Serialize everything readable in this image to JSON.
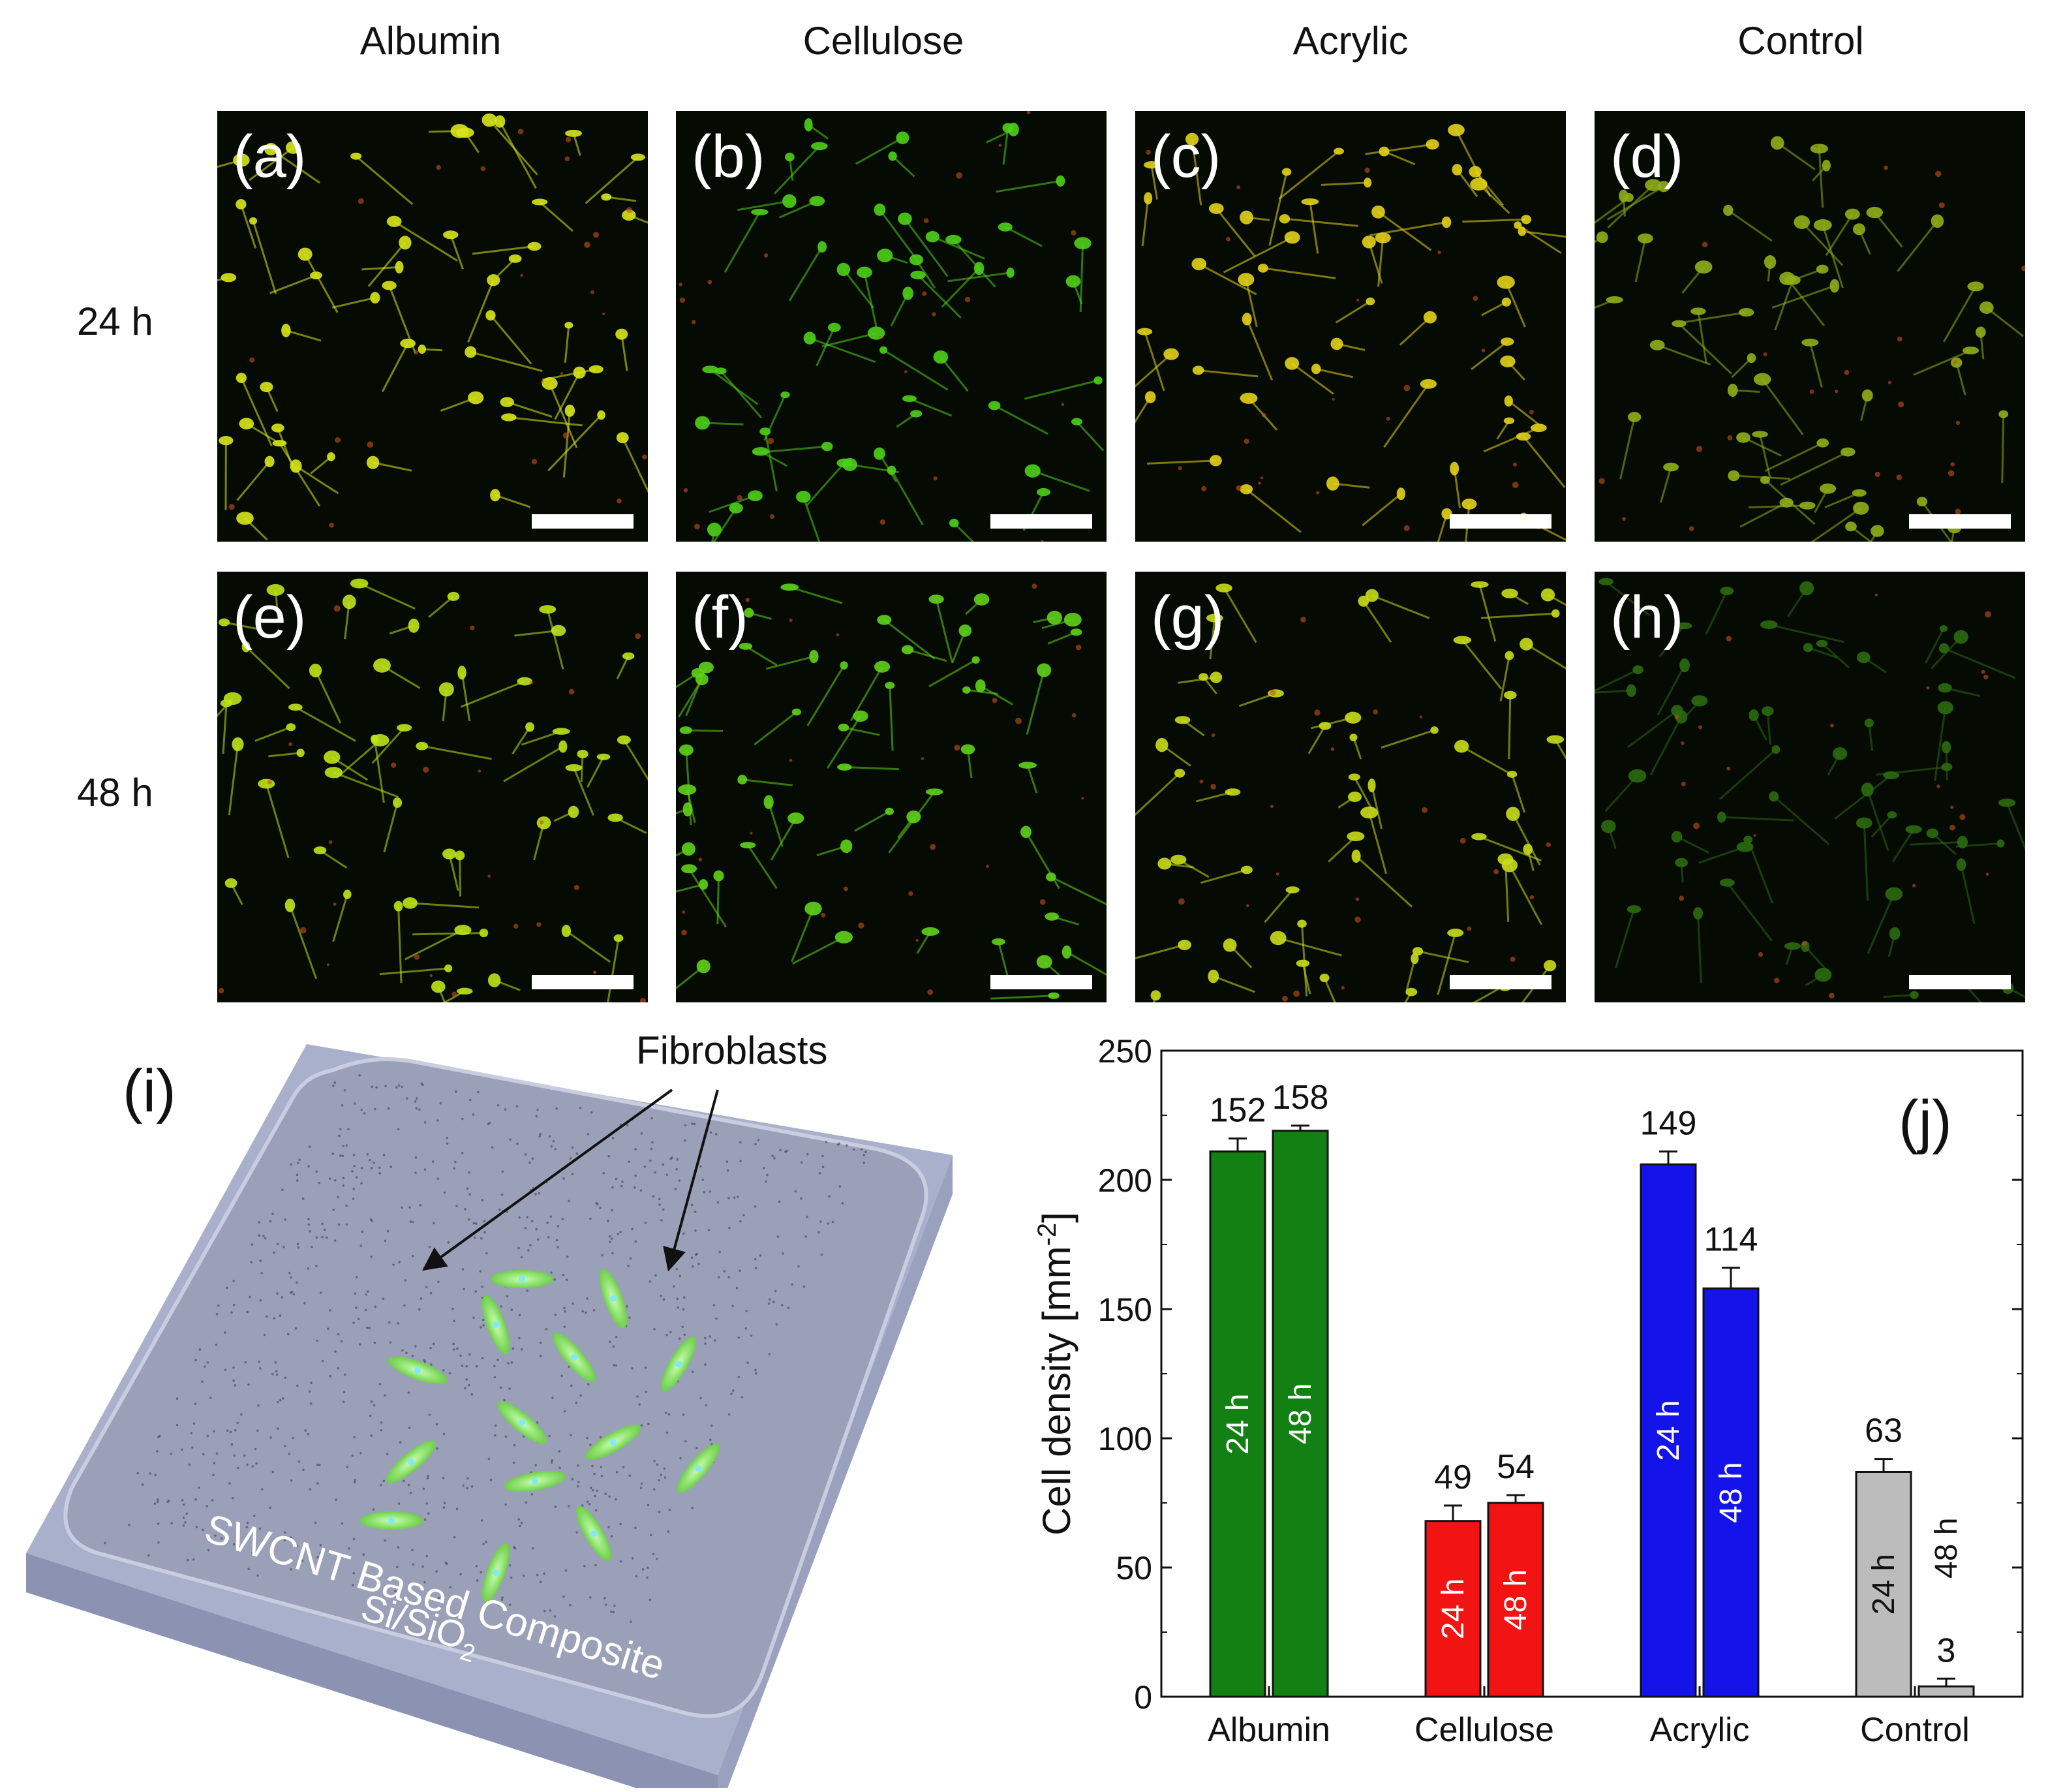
{
  "columns": [
    "Albumin",
    "Cellulose",
    "Acrylic",
    "Control"
  ],
  "rows": [
    "24 h",
    "48 h"
  ],
  "panels": [
    {
      "letter": "(a)",
      "tint": "#d8e61a"
    },
    {
      "letter": "(b)",
      "tint": "#4ecf1a"
    },
    {
      "letter": "(c)",
      "tint": "#e3d21a"
    },
    {
      "letter": "(d)",
      "tint": "#8fae1a"
    },
    {
      "letter": "(e)",
      "tint": "#bfe31a"
    },
    {
      "letter": "(f)",
      "tint": "#5fd11a"
    },
    {
      "letter": "(g)",
      "tint": "#c9dc1a"
    },
    {
      "letter": "(h)",
      "tint": "#2c6a10"
    }
  ],
  "schematic": {
    "label": "(i)",
    "fibroblasts_label": "Fibroblasts",
    "composite_label": "SWCNT Based Composite",
    "substrate_label_main": "Si/SiO",
    "substrate_label_sub": "2"
  },
  "chart_data": {
    "type": "bar",
    "panel_label": "(j)",
    "categories": [
      "Albumin",
      "Cellulose",
      "Acrylic",
      "Control"
    ],
    "series": [
      {
        "name": "24 h",
        "values": [
          211,
          68,
          206,
          87
        ],
        "errors": [
          5,
          6,
          5,
          5
        ],
        "annotations": [
          "152",
          "49",
          "149",
          "63"
        ]
      },
      {
        "name": "48 h",
        "values": [
          219,
          75,
          158,
          4
        ],
        "errors": [
          2,
          3,
          8,
          3
        ],
        "annotations": [
          "158",
          "54",
          "114",
          "3"
        ]
      }
    ],
    "bar_colors": {
      "Albumin": "#138013",
      "Cellulose": "#f21313",
      "Acrylic": "#1414ea",
      "Control": "#bcbcbc"
    },
    "ylabel_main": "Cell density [mm",
    "ylabel_sup": "-2",
    "ylabel_end": "]",
    "ylim": [
      0,
      250
    ],
    "yticks": [
      0,
      50,
      100,
      150,
      200,
      250
    ]
  }
}
